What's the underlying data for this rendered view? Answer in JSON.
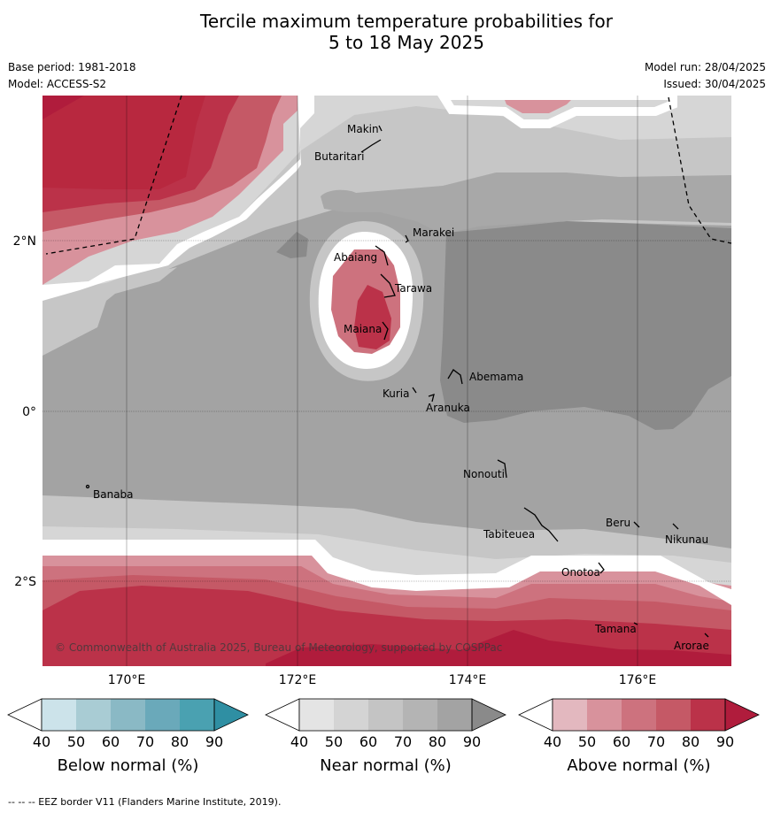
{
  "title": {
    "line1": "Tercile maximum temperature probabilities for",
    "line2": "5 to 18 May 2025"
  },
  "meta": {
    "base_period": "Base period: 1981-2018",
    "model": "Model: ACCESS-S2",
    "model_run": "Model run: 28/04/2025",
    "issued": "Issued: 30/04/2025"
  },
  "map": {
    "copyright": "© Commonwealth of Australia 2025, Bureau of Meteorology, supported by COSPPac",
    "lat_labels": [
      "2°N",
      "0°",
      "2°S"
    ],
    "lon_labels": [
      "170°E",
      "172°E",
      "174°E",
      "176°E"
    ],
    "places": [
      "Makin",
      "Butaritari",
      "Marakei",
      "Abaiang",
      "Tarawa",
      "Maiana",
      "Abemama",
      "Kuria",
      "Aranuka",
      "Nonouti",
      "Banaba",
      "Beru",
      "Tabiteuea",
      "Nikunau",
      "Onotoa",
      "Tamana",
      "Arorae"
    ]
  },
  "colorbars": [
    {
      "label": "Below normal (%)",
      "ticks": [
        "40",
        "50",
        "60",
        "70",
        "80",
        "90"
      ],
      "colors": [
        "#cce3ea",
        "#a9ccd4",
        "#8ab9c5",
        "#6aa9ba",
        "#4aa1b1",
        "#2f8fa3"
      ]
    },
    {
      "label": "Near normal (%)",
      "ticks": [
        "40",
        "50",
        "60",
        "70",
        "80",
        "90"
      ],
      "colors": [
        "#e4e4e4",
        "#d4d4d4",
        "#c4c4c4",
        "#b4b4b4",
        "#a3a3a3",
        "#8a8a8a"
      ]
    },
    {
      "label": "Above normal (%)",
      "ticks": [
        "40",
        "50",
        "60",
        "70",
        "80",
        "90"
      ],
      "colors": [
        "#e3b8bf",
        "#d8929c",
        "#cd727e",
        "#c55966",
        "#bb3249",
        "#b01c3c"
      ]
    }
  ],
  "footnote": "--  --  -- EEZ border V11 (Flanders Marine Institute, 2019)."
}
